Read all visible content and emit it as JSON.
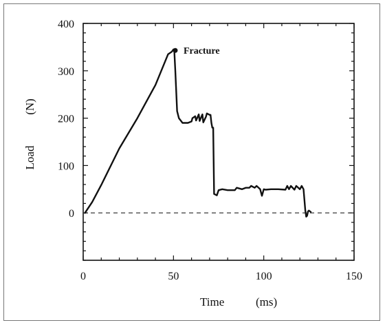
{
  "chart_data": {
    "type": "line",
    "title": "",
    "xlabel": "Time",
    "xunit": "(ms)",
    "ylabel": "Load",
    "yunit": "(N)",
    "xlim": [
      0,
      150
    ],
    "ylim": [
      -100,
      400
    ],
    "x_ticks": [
      0,
      50,
      100,
      150
    ],
    "y_ticks": [
      0,
      100,
      200,
      300,
      400
    ],
    "x_tick_labels": [
      "0",
      "50",
      "100",
      "150"
    ],
    "y_tick_labels": [
      "0",
      "100",
      "200",
      "300",
      "400"
    ],
    "x_minor_step": 10,
    "y_minor_step": 20,
    "grid": false,
    "legend": "none",
    "reference_line": {
      "y": 0,
      "style": "dashed"
    },
    "annotations": [
      {
        "text": "Fracture",
        "x": 51,
        "y": 343
      }
    ],
    "series": [
      {
        "x": [
          1,
          5,
          10,
          20,
          30,
          40,
          47,
          49,
          50,
          50.5,
          51,
          52,
          53,
          55,
          58,
          60,
          60.5,
          62,
          62.5,
          64,
          64.5,
          66,
          66.5,
          68,
          68.5,
          70,
          70.5,
          71,
          71.5,
          72,
          72.5,
          74,
          75,
          77,
          80,
          84,
          85,
          88,
          90,
          92,
          93,
          95,
          96,
          98,
          99,
          100,
          101,
          104,
          108,
          112,
          113,
          114,
          115,
          117,
          118,
          120,
          121,
          122,
          123,
          123.5,
          124,
          124.5,
          125,
          126
        ],
        "y": [
          0,
          23,
          59,
          136,
          200,
          270,
          335,
          340,
          345,
          340,
          300,
          215,
          200,
          190,
          190,
          193,
          200,
          204,
          195,
          208,
          194,
          208,
          191,
          203,
          210,
          207,
          207,
          190,
          180,
          180,
          40,
          37,
          48,
          50,
          48,
          48,
          53,
          50,
          53,
          53,
          57,
          53,
          57,
          50,
          36,
          50,
          49,
          50,
          50,
          49,
          57,
          50,
          57,
          49,
          57,
          50,
          57,
          50,
          5,
          -8,
          -6,
          3,
          5,
          2
        ]
      }
    ]
  }
}
